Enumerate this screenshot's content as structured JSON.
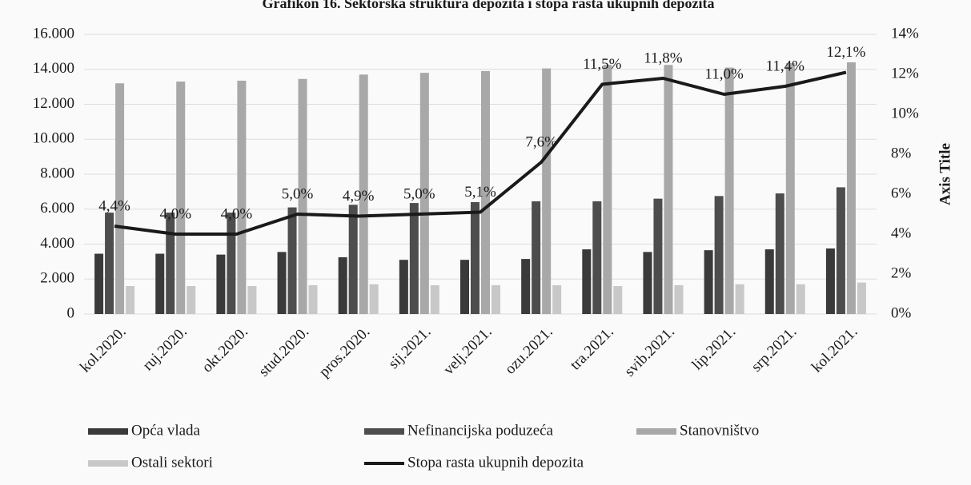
{
  "chart_data": {
    "type": "bar",
    "title": "Grafikon 16. Sektorska struktura depozita i stopa rasta ukupnih depozita",
    "categories": [
      "kol.2020.",
      "ruj.2020.",
      "okt.2020.",
      "stud.2020.",
      "pros.2020.",
      "sij.2021.",
      "velj.2021.",
      "ozu.2021.",
      "tra.2021.",
      "svib.2021.",
      "lip.2021.",
      "srp.2021.",
      "kol.2021."
    ],
    "series": [
      {
        "name": "Opća vlada",
        "color": "#3a3a3a",
        "values": [
          3450,
          3450,
          3400,
          3550,
          3250,
          3100,
          3100,
          3150,
          3700,
          3550,
          3650,
          3700,
          3750
        ]
      },
      {
        "name": "Nefinancijska poduzeća",
        "color": "#4d4d4d",
        "values": [
          5800,
          5800,
          5800,
          6100,
          6250,
          6350,
          6400,
          6450,
          6450,
          6600,
          6750,
          6900,
          7250
        ]
      },
      {
        "name": "Stanovništvo",
        "color": "#a8a8a8",
        "values": [
          13200,
          13300,
          13350,
          13450,
          13700,
          13800,
          13900,
          14050,
          14250,
          14250,
          14100,
          14350,
          14400
        ]
      },
      {
        "name": "Ostali sektori",
        "color": "#c8c8c8",
        "values": [
          1600,
          1600,
          1600,
          1650,
          1700,
          1650,
          1650,
          1650,
          1600,
          1650,
          1700,
          1700,
          1800
        ]
      },
      {
        "name": "Stopa rasta ukupnih depozita",
        "color": "#1a1a1a",
        "type": "line",
        "axis": "y2",
        "values": [
          4.4,
          4.0,
          4.0,
          5.0,
          4.9,
          5.0,
          5.1,
          7.6,
          11.5,
          11.8,
          11.0,
          11.4,
          12.1
        ],
        "value_labels": [
          "4,4%",
          "4,0%",
          "4,0%",
          "5,0%",
          "4,9%",
          "5,0%",
          "5,1%",
          "7,6%",
          "11,5%",
          "11,8%",
          "11,0%",
          "11,4%",
          "12,1%"
        ]
      }
    ],
    "ylim": [
      0,
      16000
    ],
    "yticks": [
      0,
      {
        "value": 2000,
        "label": "2.000"
      },
      {
        "value": 4000,
        "label": "4.000"
      },
      {
        "value": 6000,
        "label": "6.000"
      },
      {
        "value": 8000,
        "label": "8.000"
      },
      {
        "value": 10000,
        "label": "10.000"
      },
      {
        "value": 12000,
        "label": "12.000"
      },
      {
        "value": 14000,
        "label": "14.000"
      },
      {
        "value": 16000,
        "label": "16.000"
      }
    ],
    "y2lim": [
      0,
      14
    ],
    "y2ticks": [
      {
        "value": 0,
        "label": "0%"
      },
      {
        "value": 2,
        "label": "2%"
      },
      {
        "value": 4,
        "label": "4%"
      },
      {
        "value": 6,
        "label": "6%"
      },
      {
        "value": 8,
        "label": "8%"
      },
      {
        "value": 10,
        "label": "10%"
      },
      {
        "value": 12,
        "label": "12%"
      },
      {
        "value": 14,
        "label": "14%"
      }
    ],
    "y2label": "Axis Title",
    "grid": true
  }
}
